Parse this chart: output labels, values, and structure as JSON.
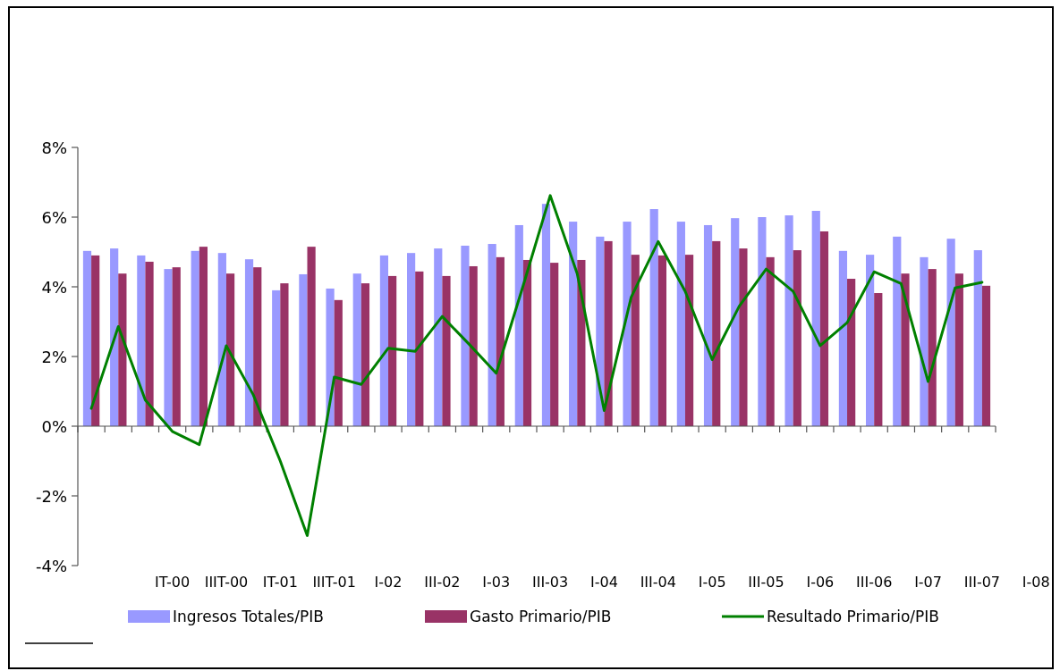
{
  "chart_data": {
    "type": "bar",
    "categories": [
      null,
      null,
      null,
      "IT-00",
      null,
      "IIIT-00",
      null,
      "IT-01",
      null,
      "IIIT-01",
      null,
      "I-02",
      null,
      "III-02",
      null,
      "I-03",
      null,
      "III-03",
      null,
      "I-04",
      null,
      "III-04",
      null,
      "I-05",
      null,
      "III-05",
      null,
      "I-06",
      null,
      "III-06",
      null,
      "I-07",
      null,
      "III-07"
    ],
    "series": [
      {
        "name": "Ingresos Totales/PIB",
        "color": "#9999ff",
        "values": [
          5.03,
          5.1,
          4.9,
          4.51,
          5.03,
          4.97,
          4.79,
          3.9,
          4.36,
          3.95,
          4.38,
          4.9,
          4.97,
          5.1,
          5.18,
          5.23,
          5.77,
          6.38,
          5.87,
          5.44,
          5.87,
          6.23,
          5.87,
          5.77,
          5.97,
          6.0,
          6.05,
          6.18,
          5.03,
          4.92,
          5.44,
          4.85,
          5.38,
          5.05
        ]
      },
      {
        "name": "Gasto Primario/PIB",
        "color": "#993366",
        "values": [
          4.9,
          4.38,
          4.72,
          4.56,
          5.15,
          4.38,
          4.56,
          4.1,
          5.15,
          3.62,
          4.1,
          4.31,
          4.44,
          4.31,
          4.59,
          4.85,
          4.77,
          4.69,
          4.77,
          5.31,
          4.92,
          4.9,
          4.92,
          5.31,
          5.1,
          4.85,
          5.05,
          5.59,
          4.23,
          3.82,
          4.38,
          4.51,
          4.38,
          4.03
        ]
      },
      {
        "name": "Resultado Primario/PIB",
        "type": "line",
        "color": "#008000",
        "values": [
          0.51,
          2.86,
          0.75,
          -0.15,
          -0.53,
          2.31,
          0.9,
          -1.0,
          -3.14,
          1.41,
          1.2,
          2.24,
          2.15,
          3.15,
          2.35,
          1.52,
          4.04,
          6.62,
          4.38,
          0.45,
          3.7,
          5.3,
          3.87,
          1.91,
          3.44,
          4.51,
          3.87,
          2.31,
          2.97,
          4.43,
          4.09,
          1.28,
          3.97,
          4.13
        ]
      }
    ],
    "ylim": [
      -4,
      8
    ],
    "yticks": [
      {
        "value": -4,
        "label": "-4%"
      },
      {
        "value": -2,
        "label": "-2%"
      },
      {
        "value": 0,
        "label": "0%"
      },
      {
        "value": 2,
        "label": "2%"
      },
      {
        "value": 4,
        "label": "4%"
      },
      {
        "value": 6,
        "label": "6%"
      },
      {
        "value": 8,
        "label": "8%"
      }
    ],
    "annotations": [
      "I-08"
    ],
    "legend": "bottom"
  }
}
